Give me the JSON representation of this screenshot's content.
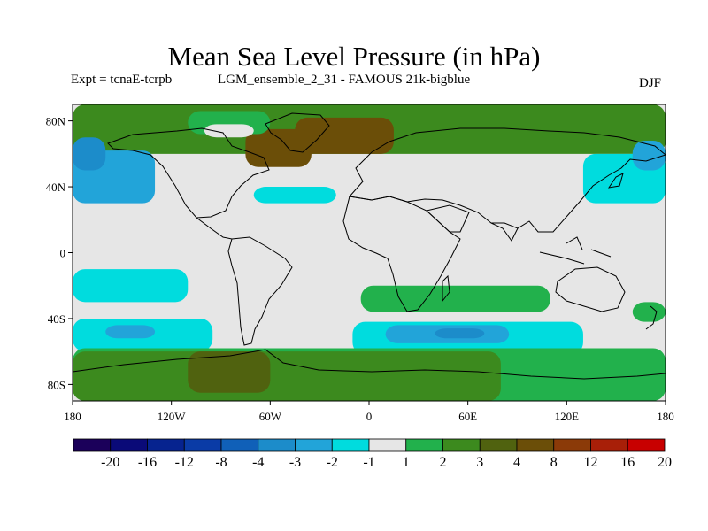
{
  "chart_data": {
    "type": "heatmap",
    "title": "Mean Sea Level Pressure (in hPa)",
    "subtitle_left": "Expt = tcnaE-tcrpb",
    "subtitle_center": "LGM_ensemble_2_31 - FAMOUS 21k-bigblue",
    "season": "DJF",
    "xlim": [
      -180,
      180
    ],
    "ylim": [
      -90,
      90
    ],
    "x_ticks": [
      {
        "value": -180,
        "label": "180"
      },
      {
        "value": -120,
        "label": "120W"
      },
      {
        "value": -60,
        "label": "60W"
      },
      {
        "value": 0,
        "label": "0"
      },
      {
        "value": 60,
        "label": "60E"
      },
      {
        "value": 120,
        "label": "120E"
      },
      {
        "value": 180,
        "label": "180"
      }
    ],
    "y_ticks": [
      {
        "value": 80,
        "label": "80N"
      },
      {
        "value": 40,
        "label": "40N"
      },
      {
        "value": 0,
        "label": "0"
      },
      {
        "value": -40,
        "label": "40S"
      },
      {
        "value": -80,
        "label": "80S"
      }
    ],
    "levels": [
      "-20",
      "-16",
      "-12",
      "-8",
      "-4",
      "-3",
      "-2",
      "-1",
      "1",
      "2",
      "3",
      "4",
      "8",
      "12",
      "16",
      "20"
    ],
    "colors": [
      "#1b005a",
      "#0a0a78",
      "#06238f",
      "#0a3ba6",
      "#1060b8",
      "#1c8cca",
      "#22a4d9",
      "#00dcde",
      "#e6e6e6",
      "#22b14c",
      "#3c8a1e",
      "#50620f",
      "#6b4e08",
      "#8b3a08",
      "#a81f08",
      "#c80000"
    ],
    "field_bands": [
      {
        "lat": [
          60,
          90
        ],
        "lon": [
          -180,
          180
        ],
        "value": 2.5
      },
      {
        "lat": [
          60,
          82
        ],
        "lon": [
          -45,
          15
        ],
        "value": 6
      },
      {
        "lat": [
          52,
          75
        ],
        "lon": [
          -75,
          -35
        ],
        "value": 5
      },
      {
        "lat": [
          72,
          86
        ],
        "lon": [
          -110,
          -60
        ],
        "value": 1.5
      },
      {
        "lat": [
          70,
          78
        ],
        "lon": [
          -100,
          -70
        ],
        "value": 0
      },
      {
        "lat": [
          30,
          62
        ],
        "lon": [
          -180,
          -130
        ],
        "value": -2.5
      },
      {
        "lat": [
          50,
          70
        ],
        "lon": [
          -180,
          -160
        ],
        "value": -3.5
      },
      {
        "lat": [
          30,
          40
        ],
        "lon": [
          -70,
          -20
        ],
        "value": -1.5
      },
      {
        "lat": [
          22,
          32
        ],
        "lon": [
          -20,
          60
        ],
        "value": 0
      },
      {
        "lat": [
          30,
          60
        ],
        "lon": [
          130,
          180
        ],
        "value": -1.5
      },
      {
        "lat": [
          50,
          68
        ],
        "lon": [
          160,
          180
        ],
        "value": -2.5
      },
      {
        "lat": [
          -30,
          -10
        ],
        "lon": [
          -180,
          -110
        ],
        "value": -1.5
      },
      {
        "lat": [
          -36,
          -20
        ],
        "lon": [
          -5,
          110
        ],
        "value": 1.5
      },
      {
        "lat": [
          -42,
          -30
        ],
        "lon": [
          160,
          180
        ],
        "value": 1.5
      },
      {
        "lat": [
          -60,
          -40
        ],
        "lon": [
          -180,
          -95
        ],
        "value": -1.5
      },
      {
        "lat": [
          -52,
          -44
        ],
        "lon": [
          -160,
          -130
        ],
        "value": -2.5
      },
      {
        "lat": [
          -62,
          -42
        ],
        "lon": [
          -10,
          130
        ],
        "value": -1.5
      },
      {
        "lat": [
          -55,
          -44
        ],
        "lon": [
          10,
          85
        ],
        "value": -2.5
      },
      {
        "lat": [
          -52,
          -46
        ],
        "lon": [
          40,
          70
        ],
        "value": -3.5
      },
      {
        "lat": [
          -90,
          -58
        ],
        "lon": [
          -180,
          180
        ],
        "value": 1.5
      },
      {
        "lat": [
          -90,
          -60
        ],
        "lon": [
          -180,
          80
        ],
        "value": 2.5
      },
      {
        "lat": [
          -85,
          -60
        ],
        "lon": [
          -110,
          -60
        ],
        "value": 3.5
      }
    ]
  },
  "colors": {
    "background": "#ffffff",
    "coastline": "#000000"
  }
}
